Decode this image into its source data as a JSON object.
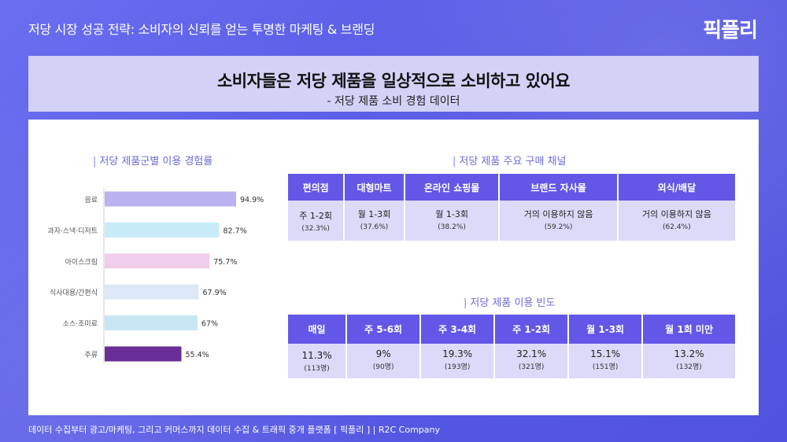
{
  "header": {
    "title": "저당 시장 성공 전략: 소비자의 신뢰를 얻는 투명한 마케팅 & 브랜딩",
    "logo": "픽플리"
  },
  "headline": {
    "title": "소비자들은 저당 제품을 일상적으로 소비하고 있어요",
    "subtitle": "- 저당 제품 소비 경험 데이터"
  },
  "sections": {
    "usage_rate": "저당 제품군별 이용 경험률",
    "channels": "저당 제품 주요 구매 채널",
    "frequency": "저당 제품 이용 빈도"
  },
  "chart_data": [
    {
      "type": "bar",
      "orientation": "horizontal",
      "title": "저당 제품군별 이용 경험률",
      "categories": [
        "음료",
        "과자·스낵·디저트",
        "아이스크림",
        "식사대용/간편식",
        "소스·조미료",
        "주류"
      ],
      "values": [
        94.9,
        82.7,
        75.7,
        67.9,
        67,
        55.4
      ],
      "value_labels": [
        "94.9%",
        "82.7%",
        "75.7%",
        "67.9%",
        "67%",
        "55.4%"
      ],
      "colors": [
        "#b9b1f0",
        "#c8ebf8",
        "#f0cdea",
        "#dce8f6",
        "#c8e6f6",
        "#6a2f96"
      ],
      "xlim": [
        0,
        100
      ]
    },
    {
      "type": "table",
      "title": "저당 제품 주요 구매 채널",
      "columns": [
        "편의점",
        "대형마트",
        "온라인 쇼핑몰",
        "브랜드 자사몰",
        "외식/배달"
      ],
      "rows": [
        [
          "주 1-2회",
          "월 1-3회",
          "월 1-3회",
          "거의 이용하지 않음",
          "거의 이용하지 않음"
        ],
        [
          "(32.3%)",
          "(37.6%)",
          "(38.2%)",
          "(59.2%)",
          "(62.4%)"
        ]
      ]
    },
    {
      "type": "table",
      "title": "저당 제품 이용 빈도",
      "columns": [
        "매일",
        "주 5-6회",
        "주 3-4회",
        "주 1-2회",
        "월 1-3회",
        "월 1회 미만"
      ],
      "rows": [
        [
          "11.3%",
          "9%",
          "19.3%",
          "32.1%",
          "15.1%",
          "13.2%"
        ],
        [
          "(113명)",
          "(90명)",
          "(193명)",
          "(321명)",
          "(151명)",
          "(132명)"
        ]
      ]
    }
  ],
  "footer": "데이터 수집부터 광고/마케팅, 그리고 커머스까지 데이터 수집 & 트래픽 중개 플랫폼 [ 픽플리 ]  |  R2C Company"
}
